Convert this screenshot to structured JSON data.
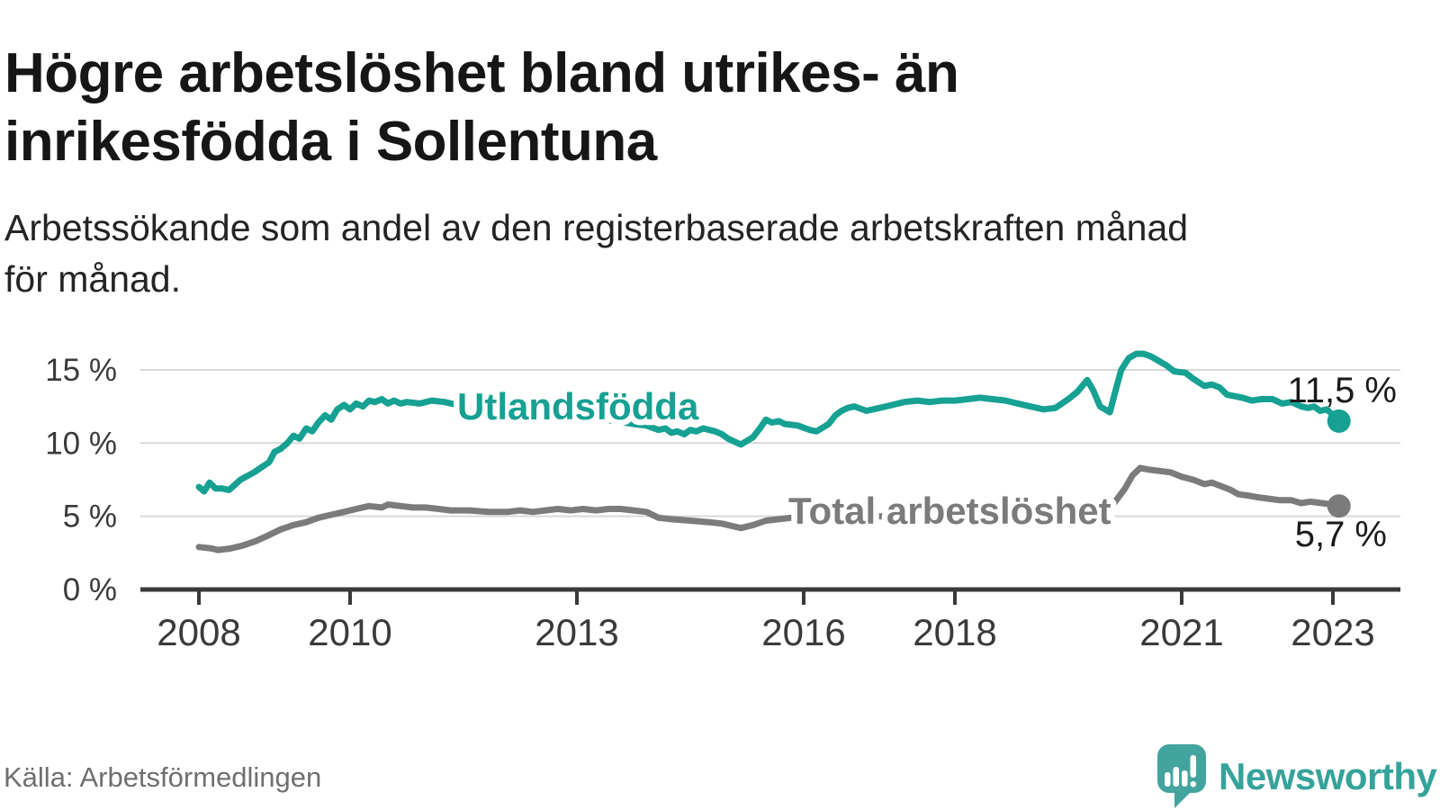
{
  "header": {
    "title_line1": "Högre arbetslöshet bland utrikes- än",
    "title_line2": "inrikesfödda i Sollentuna",
    "subtitle_line1": "Arbetssökande som andel av den registerbaserade arbetskraften månad",
    "subtitle_line2": "för månad."
  },
  "footer": {
    "source": "Källa: Arbetsförmedlingen",
    "brand": "Newsworthy"
  },
  "chart_data": {
    "type": "line",
    "title": "Högre arbetslöshet bland utrikes- än inrikesfödda i Sollentuna",
    "subtitle": "Arbetssökande som andel av den registerbaserade arbetskraften månad för månad.",
    "xlabel": "",
    "ylabel": "",
    "xlim": [
      2007.2,
      2023.9
    ],
    "ylim": [
      0,
      16.6
    ],
    "grid": true,
    "legend": "inline-labels",
    "colors": {
      "grid": "#d9d9d9",
      "axis": "#3a3a3a",
      "tick_text": "#3a3a3a",
      "value_text": "#1a1a1a",
      "background": "#ffffff",
      "brand_teal": "#35a39a"
    },
    "x_ticks": [
      {
        "value": 2008,
        "label": "2008"
      },
      {
        "value": 2010,
        "label": "2010"
      },
      {
        "value": 2013,
        "label": "2013"
      },
      {
        "value": 2016,
        "label": "2016"
      },
      {
        "value": 2018,
        "label": "2018"
      },
      {
        "value": 2021,
        "label": "2021"
      },
      {
        "value": 2023,
        "label": "2023"
      }
    ],
    "y_ticks": [
      {
        "value": 0,
        "label": "0 %"
      },
      {
        "value": 5,
        "label": "5 %"
      },
      {
        "value": 10,
        "label": "10 %"
      },
      {
        "value": 15,
        "label": "15 %"
      }
    ],
    "series": [
      {
        "name": "Utlandsfödda",
        "color": "#16a193",
        "end_value": 11.5,
        "end_label": "11,5 %",
        "points": [
          [
            2008.0,
            7.0
          ],
          [
            2008.07,
            6.7
          ],
          [
            2008.14,
            7.3
          ],
          [
            2008.22,
            6.9
          ],
          [
            2008.3,
            6.9
          ],
          [
            2008.4,
            6.8
          ],
          [
            2008.55,
            7.5
          ],
          [
            2008.73,
            8.0
          ],
          [
            2008.93,
            8.7
          ],
          [
            2009.0,
            9.4
          ],
          [
            2009.08,
            9.6
          ],
          [
            2009.17,
            10.0
          ],
          [
            2009.25,
            10.5
          ],
          [
            2009.33,
            10.3
          ],
          [
            2009.42,
            11.0
          ],
          [
            2009.5,
            10.8
          ],
          [
            2009.58,
            11.4
          ],
          [
            2009.67,
            11.9
          ],
          [
            2009.75,
            11.6
          ],
          [
            2009.83,
            12.3
          ],
          [
            2009.92,
            12.6
          ],
          [
            2010.0,
            12.3
          ],
          [
            2010.08,
            12.7
          ],
          [
            2010.17,
            12.5
          ],
          [
            2010.25,
            12.9
          ],
          [
            2010.33,
            12.8
          ],
          [
            2010.42,
            13.0
          ],
          [
            2010.5,
            12.7
          ],
          [
            2010.58,
            12.9
          ],
          [
            2010.67,
            12.7
          ],
          [
            2010.75,
            12.8
          ],
          [
            2010.92,
            12.7
          ],
          [
            2011.08,
            12.9
          ],
          [
            2011.25,
            12.8
          ],
          [
            2011.42,
            12.6
          ],
          [
            2011.58,
            12.5
          ],
          [
            2011.75,
            12.4
          ],
          [
            2012.0,
            12.4
          ],
          [
            2012.25,
            12.3
          ],
          [
            2012.5,
            12.3
          ],
          [
            2012.75,
            12.1
          ],
          [
            2013.0,
            11.9
          ],
          [
            2013.25,
            11.7
          ],
          [
            2013.5,
            11.5
          ],
          [
            2013.75,
            11.3
          ],
          [
            2013.92,
            11.2
          ],
          [
            2014.08,
            10.9
          ],
          [
            2014.17,
            11.0
          ],
          [
            2014.25,
            10.7
          ],
          [
            2014.33,
            10.8
          ],
          [
            2014.42,
            10.6
          ],
          [
            2014.5,
            10.9
          ],
          [
            2014.58,
            10.8
          ],
          [
            2014.67,
            11.0
          ],
          [
            2014.75,
            10.9
          ],
          [
            2014.83,
            10.8
          ],
          [
            2014.92,
            10.6
          ],
          [
            2015.0,
            10.3
          ],
          [
            2015.17,
            9.9
          ],
          [
            2015.33,
            10.4
          ],
          [
            2015.42,
            11.0
          ],
          [
            2015.5,
            11.6
          ],
          [
            2015.58,
            11.4
          ],
          [
            2015.67,
            11.5
          ],
          [
            2015.75,
            11.3
          ],
          [
            2015.92,
            11.2
          ],
          [
            2016.08,
            10.9
          ],
          [
            2016.17,
            10.8
          ],
          [
            2016.33,
            11.3
          ],
          [
            2016.42,
            11.9
          ],
          [
            2016.5,
            12.2
          ],
          [
            2016.58,
            12.4
          ],
          [
            2016.67,
            12.5
          ],
          [
            2016.83,
            12.2
          ],
          [
            2017.0,
            12.4
          ],
          [
            2017.17,
            12.6
          ],
          [
            2017.33,
            12.8
          ],
          [
            2017.5,
            12.9
          ],
          [
            2017.67,
            12.8
          ],
          [
            2017.83,
            12.9
          ],
          [
            2018.0,
            12.9
          ],
          [
            2018.17,
            13.0
          ],
          [
            2018.33,
            13.1
          ],
          [
            2018.5,
            13.0
          ],
          [
            2018.67,
            12.9
          ],
          [
            2018.83,
            12.7
          ],
          [
            2019.0,
            12.5
          ],
          [
            2019.17,
            12.3
          ],
          [
            2019.33,
            12.4
          ],
          [
            2019.5,
            13.0
          ],
          [
            2019.62,
            13.5
          ],
          [
            2019.75,
            14.3
          ],
          [
            2019.83,
            13.6
          ],
          [
            2019.92,
            12.5
          ],
          [
            2020.05,
            12.1
          ],
          [
            2020.12,
            13.5
          ],
          [
            2020.2,
            15.0
          ],
          [
            2020.3,
            15.8
          ],
          [
            2020.4,
            16.1
          ],
          [
            2020.5,
            16.1
          ],
          [
            2020.6,
            15.9
          ],
          [
            2020.7,
            15.6
          ],
          [
            2020.8,
            15.3
          ],
          [
            2020.9,
            14.9
          ],
          [
            2021.05,
            14.8
          ],
          [
            2021.15,
            14.4
          ],
          [
            2021.3,
            13.9
          ],
          [
            2021.4,
            14.0
          ],
          [
            2021.5,
            13.8
          ],
          [
            2021.6,
            13.3
          ],
          [
            2021.7,
            13.2
          ],
          [
            2021.8,
            13.1
          ],
          [
            2021.93,
            12.9
          ],
          [
            2022.05,
            13.0
          ],
          [
            2022.2,
            13.0
          ],
          [
            2022.33,
            12.7
          ],
          [
            2022.45,
            12.8
          ],
          [
            2022.58,
            12.5
          ],
          [
            2022.67,
            12.4
          ],
          [
            2022.75,
            12.5
          ],
          [
            2022.83,
            12.2
          ],
          [
            2022.92,
            12.3
          ],
          [
            2023.0,
            11.9
          ],
          [
            2023.08,
            11.5
          ]
        ]
      },
      {
        "name": "Total arbetslöshet",
        "color": "#7b7b7b",
        "end_value": 5.7,
        "end_label": "5,7 %",
        "points": [
          [
            2008.0,
            2.9
          ],
          [
            2008.17,
            2.8
          ],
          [
            2008.25,
            2.7
          ],
          [
            2008.42,
            2.8
          ],
          [
            2008.58,
            3.0
          ],
          [
            2008.75,
            3.3
          ],
          [
            2008.92,
            3.7
          ],
          [
            2009.08,
            4.1
          ],
          [
            2009.25,
            4.4
          ],
          [
            2009.42,
            4.6
          ],
          [
            2009.58,
            4.9
          ],
          [
            2009.75,
            5.1
          ],
          [
            2009.92,
            5.3
          ],
          [
            2010.08,
            5.5
          ],
          [
            2010.25,
            5.7
          ],
          [
            2010.42,
            5.6
          ],
          [
            2010.5,
            5.8
          ],
          [
            2010.67,
            5.7
          ],
          [
            2010.83,
            5.6
          ],
          [
            2011.0,
            5.6
          ],
          [
            2011.17,
            5.5
          ],
          [
            2011.33,
            5.4
          ],
          [
            2011.58,
            5.4
          ],
          [
            2011.83,
            5.3
          ],
          [
            2012.08,
            5.3
          ],
          [
            2012.25,
            5.4
          ],
          [
            2012.42,
            5.3
          ],
          [
            2012.58,
            5.4
          ],
          [
            2012.75,
            5.5
          ],
          [
            2012.92,
            5.4
          ],
          [
            2013.08,
            5.5
          ],
          [
            2013.25,
            5.4
          ],
          [
            2013.42,
            5.5
          ],
          [
            2013.58,
            5.5
          ],
          [
            2013.75,
            5.4
          ],
          [
            2013.92,
            5.3
          ],
          [
            2014.08,
            4.9
          ],
          [
            2014.25,
            4.8
          ],
          [
            2014.5,
            4.7
          ],
          [
            2014.75,
            4.6
          ],
          [
            2014.92,
            4.5
          ],
          [
            2015.08,
            4.3
          ],
          [
            2015.17,
            4.2
          ],
          [
            2015.33,
            4.4
          ],
          [
            2015.5,
            4.7
          ],
          [
            2015.67,
            4.8
          ],
          [
            2015.83,
            4.9
          ],
          [
            2016.0,
            5.0
          ],
          [
            2016.25,
            5.1
          ],
          [
            2016.5,
            5.1
          ],
          [
            2016.75,
            5.0
          ],
          [
            2017.0,
            5.0
          ],
          [
            2017.25,
            4.9
          ],
          [
            2017.5,
            4.9
          ],
          [
            2017.75,
            4.8
          ],
          [
            2018.0,
            4.8
          ],
          [
            2018.25,
            4.7
          ],
          [
            2018.5,
            4.7
          ],
          [
            2018.75,
            4.8
          ],
          [
            2019.0,
            4.8
          ],
          [
            2019.25,
            4.9
          ],
          [
            2019.5,
            5.0
          ],
          [
            2019.75,
            5.1
          ],
          [
            2019.92,
            5.2
          ],
          [
            2020.05,
            5.5
          ],
          [
            2020.15,
            6.2
          ],
          [
            2020.25,
            6.9
          ],
          [
            2020.35,
            7.8
          ],
          [
            2020.45,
            8.3
          ],
          [
            2020.55,
            8.2
          ],
          [
            2020.7,
            8.1
          ],
          [
            2020.85,
            8.0
          ],
          [
            2021.0,
            7.7
          ],
          [
            2021.15,
            7.5
          ],
          [
            2021.3,
            7.2
          ],
          [
            2021.4,
            7.3
          ],
          [
            2021.55,
            7.0
          ],
          [
            2021.65,
            6.8
          ],
          [
            2021.75,
            6.5
          ],
          [
            2021.9,
            6.4
          ],
          [
            2022.0,
            6.3
          ],
          [
            2022.15,
            6.2
          ],
          [
            2022.3,
            6.1
          ],
          [
            2022.45,
            6.1
          ],
          [
            2022.58,
            5.9
          ],
          [
            2022.7,
            6.0
          ],
          [
            2022.85,
            5.9
          ],
          [
            2023.0,
            5.8
          ],
          [
            2023.08,
            5.7
          ]
        ]
      }
    ]
  }
}
